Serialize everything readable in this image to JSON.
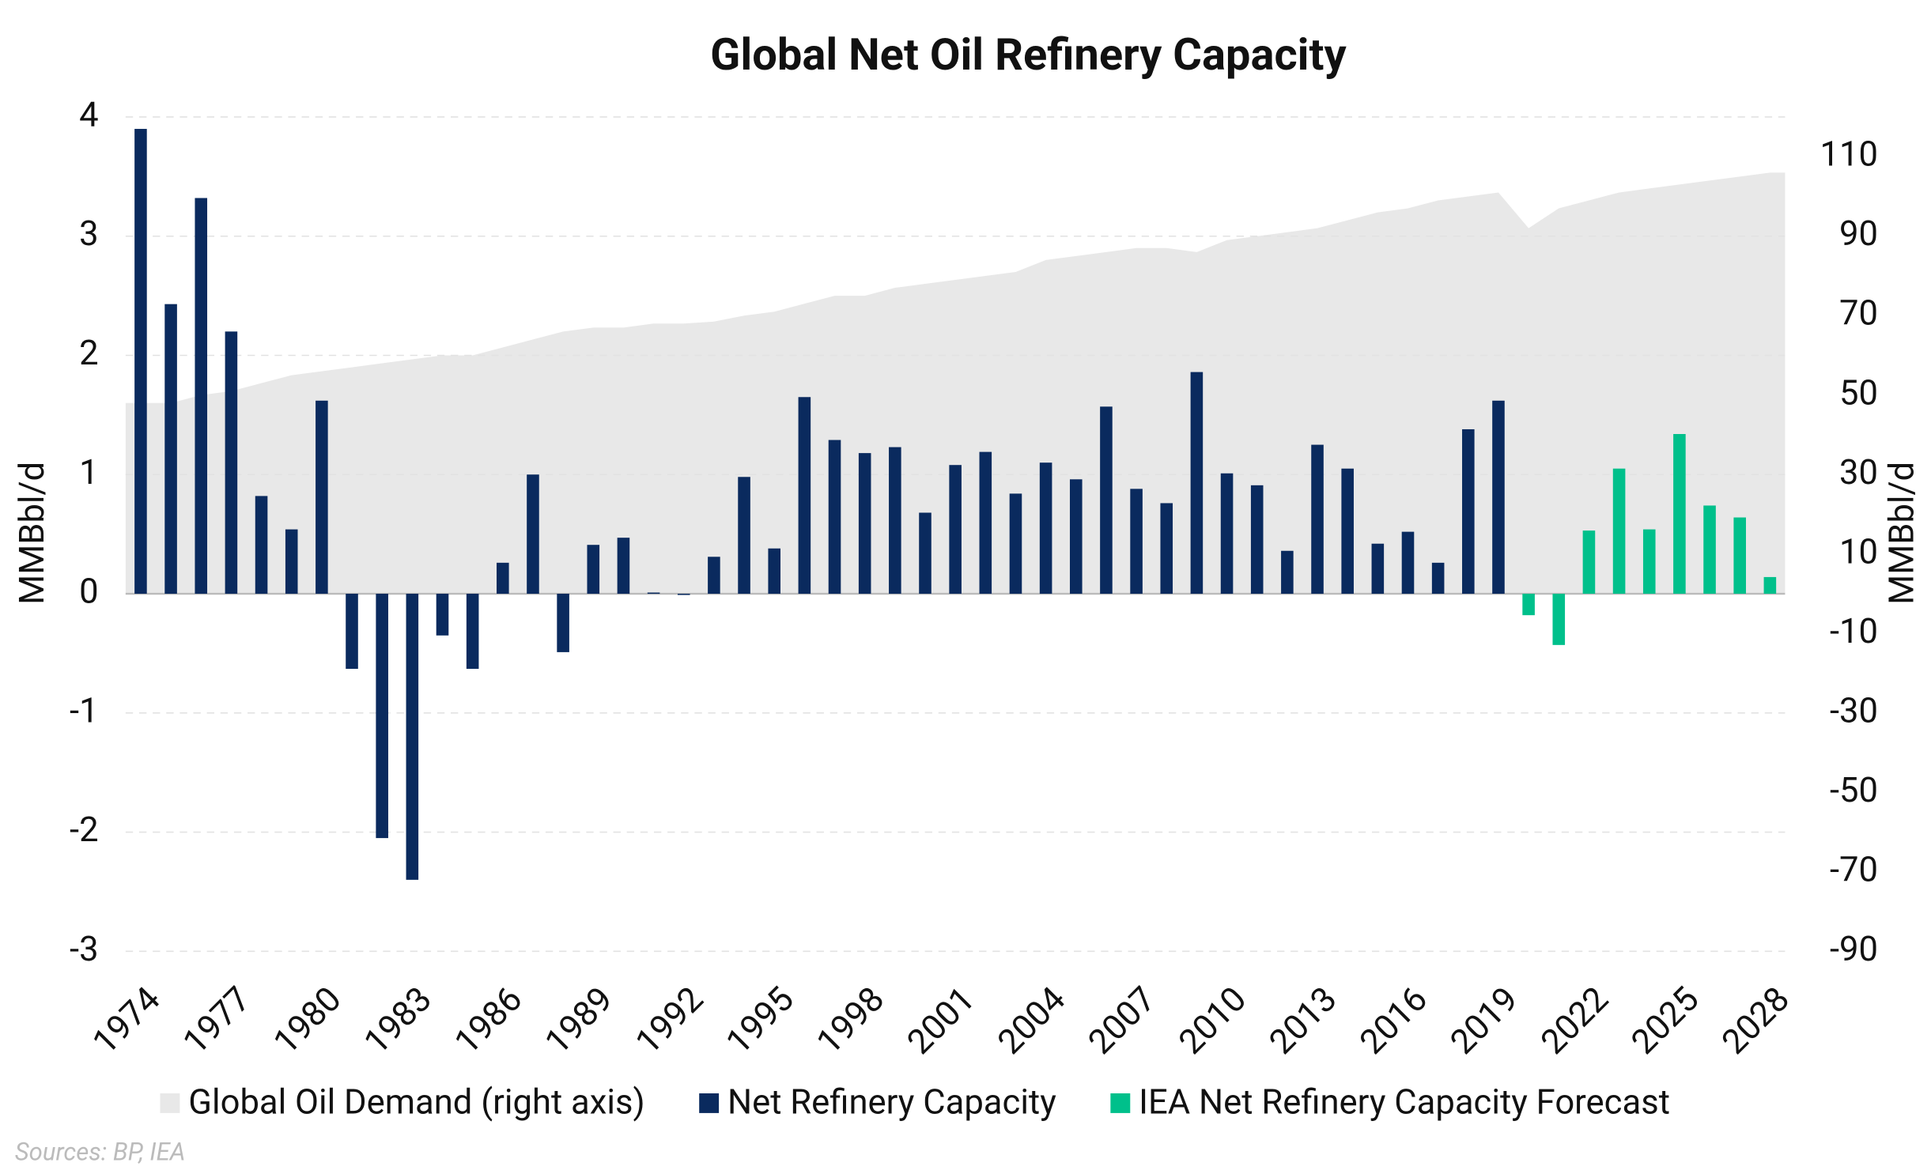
{
  "chart_data": {
    "type": "bar",
    "title": "Global Net Oil Refinery Capacity",
    "ylabel": "MMBbl/d",
    "y2label": "MMBbl/d",
    "source": "Sources: BP, IEA",
    "categories": [
      "1974",
      null,
      null,
      "1977",
      null,
      null,
      "1980",
      null,
      null,
      "1983",
      null,
      null,
      "1986",
      null,
      null,
      "1989",
      null,
      null,
      "1992",
      null,
      null,
      "1995",
      null,
      null,
      "1998",
      null,
      null,
      "2001",
      null,
      null,
      "2004",
      null,
      null,
      "2007",
      null,
      null,
      "2010",
      null,
      null,
      "2013",
      null,
      null,
      "2016",
      null,
      null,
      "2019",
      null,
      null,
      "2022",
      null,
      null,
      "2025",
      null,
      null,
      "2028"
    ],
    "series": [
      {
        "name": "Global Oil Demand (right axis)",
        "color": "#e8e8e8",
        "axis": "y2",
        "kind": "area",
        "values": [
          48,
          48,
          50,
          51,
          53,
          55,
          56,
          57,
          58,
          59,
          60,
          60,
          62,
          64,
          66,
          67,
          67,
          68,
          68,
          68.5,
          70,
          71,
          73,
          75,
          75,
          77,
          78,
          79,
          80,
          81,
          84,
          85,
          86,
          87,
          87,
          86,
          89,
          90,
          91,
          92,
          94,
          96,
          97,
          99,
          100,
          101,
          92,
          97,
          99,
          101,
          102,
          103,
          104,
          105,
          106
        ]
      },
      {
        "name": "Net Refinery Capacity",
        "color": "#0a2a5e",
        "values": [
          3.9,
          2.43,
          3.32,
          2.2,
          0.82,
          0.54,
          1.62,
          -0.63,
          -2.05,
          -2.4,
          -0.35,
          -0.63,
          0.26,
          1.0,
          -0.49,
          0.41,
          0.47,
          0.01,
          0,
          0.31,
          0.98,
          0.38,
          1.65,
          1.29,
          1.18,
          1.23,
          0.68,
          1.08,
          1.19,
          0.84,
          1.1,
          0.96,
          1.57,
          0.88,
          0.76,
          1.86,
          1.01,
          0.91,
          0.36,
          1.25,
          1.05,
          0.42,
          0.52,
          0.26,
          1.38,
          1.62,
          null,
          null,
          null,
          null,
          null,
          null,
          null,
          null,
          null
        ]
      },
      {
        "name": "IEA Net Refinery Capacity Forecast",
        "color": "#00c08b",
        "values": [
          null,
          null,
          null,
          null,
          null,
          null,
          null,
          null,
          null,
          null,
          null,
          null,
          null,
          null,
          null,
          null,
          null,
          null,
          null,
          null,
          null,
          null,
          null,
          null,
          null,
          null,
          null,
          null,
          null,
          null,
          null,
          null,
          null,
          null,
          null,
          null,
          null,
          null,
          null,
          null,
          null,
          null,
          null,
          null,
          null,
          null,
          -0.18,
          -0.43,
          0.53,
          1.05,
          0.54,
          1.34,
          0.74,
          0.64,
          0.14
        ]
      }
    ],
    "ylim": [
      -3.2,
      4
    ],
    "yticks": [
      -3,
      -2,
      -1,
      0,
      1,
      2,
      3,
      4
    ],
    "y2lim": [
      -96,
      120
    ],
    "y2ticks": [
      -90,
      -70,
      -50,
      -30,
      -10,
      10,
      30,
      50,
      70,
      90,
      110
    ],
    "grid": true
  }
}
